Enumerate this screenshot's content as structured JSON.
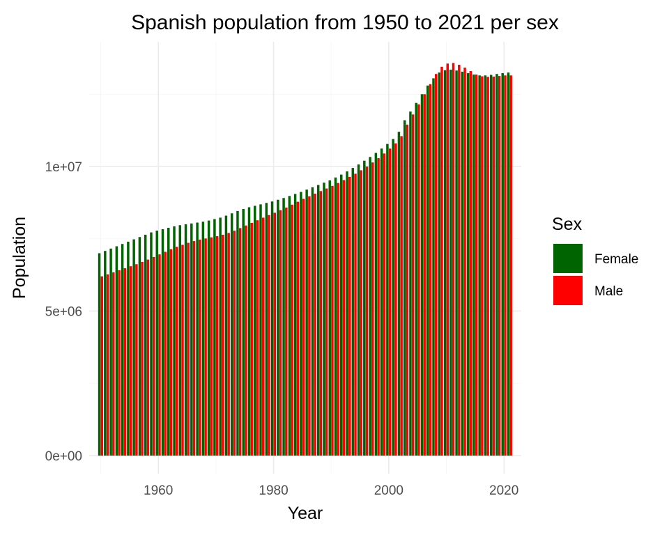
{
  "chart_data": {
    "type": "bar",
    "title": "Spanish population from 1950 to 2021 per sex",
    "xlabel": "Year",
    "ylabel": "Population",
    "xlim": [
      1948,
      2023
    ],
    "ylim": [
      0,
      14000000
    ],
    "x_ticks": [
      1960,
      1980,
      2000,
      2020
    ],
    "x_tick_labels": [
      "1960",
      "1980",
      "2000",
      "2020"
    ],
    "y_ticks": [
      0,
      5000000,
      10000000
    ],
    "y_tick_labels": [
      "0e+00",
      "5e+06",
      "1e+07"
    ],
    "grid": true,
    "legend": {
      "title": "Sex",
      "position": "right"
    },
    "x": [
      1950,
      1951,
      1952,
      1953,
      1954,
      1955,
      1956,
      1957,
      1958,
      1959,
      1960,
      1961,
      1962,
      1963,
      1964,
      1965,
      1966,
      1967,
      1968,
      1969,
      1970,
      1971,
      1972,
      1973,
      1974,
      1975,
      1976,
      1977,
      1978,
      1979,
      1980,
      1981,
      1982,
      1983,
      1984,
      1985,
      1986,
      1987,
      1988,
      1989,
      1990,
      1991,
      1992,
      1993,
      1994,
      1995,
      1996,
      1997,
      1998,
      1999,
      2000,
      2001,
      2002,
      2003,
      2004,
      2005,
      2006,
      2007,
      2008,
      2009,
      2010,
      2011,
      2012,
      2013,
      2014,
      2015,
      2016,
      2017,
      2018,
      2019,
      2020,
      2021
    ],
    "series": [
      {
        "name": "Female",
        "color": "#006400",
        "values": [
          7000000,
          7080000,
          7160000,
          7240000,
          7320000,
          7400000,
          7480000,
          7560000,
          7640000,
          7720000,
          7780000,
          7830000,
          7880000,
          7930000,
          7970000,
          8000000,
          8030000,
          8060000,
          8090000,
          8130000,
          8180000,
          8230000,
          8300000,
          8380000,
          8460000,
          8530000,
          8590000,
          8640000,
          8690000,
          8740000,
          8790000,
          8850000,
          8910000,
          8980000,
          9050000,
          9120000,
          9200000,
          9280000,
          9360000,
          9440000,
          9520000,
          9620000,
          9720000,
          9830000,
          9950000,
          10070000,
          10200000,
          10330000,
          10470000,
          10620000,
          10780000,
          10950000,
          11200000,
          11600000,
          11900000,
          12200000,
          12500000,
          12800000,
          13050000,
          13250000,
          13330000,
          13350000,
          13320000,
          13280000,
          13230000,
          13180000,
          13150000,
          13150000,
          13170000,
          13200000,
          13230000,
          13250000
        ]
      },
      {
        "name": "Male",
        "color": "#ff0000",
        "values": [
          6200000,
          6270000,
          6340000,
          6410000,
          6480000,
          6550000,
          6620000,
          6700000,
          6780000,
          6870000,
          6960000,
          7050000,
          7140000,
          7220000,
          7290000,
          7360000,
          7420000,
          7470000,
          7510000,
          7550000,
          7590000,
          7640000,
          7700000,
          7780000,
          7870000,
          7960000,
          8050000,
          8140000,
          8230000,
          8320000,
          8400000,
          8490000,
          8580000,
          8680000,
          8780000,
          8880000,
          8970000,
          9060000,
          9150000,
          9240000,
          9330000,
          9430000,
          9530000,
          9640000,
          9750000,
          9870000,
          10000000,
          10140000,
          10290000,
          10450000,
          10620000,
          10800000,
          11050000,
          11450000,
          11800000,
          12150000,
          12500000,
          12850000,
          13200000,
          13450000,
          13560000,
          13580000,
          13520000,
          13420000,
          13300000,
          13180000,
          13120000,
          13100000,
          13110000,
          13130000,
          13150000,
          13150000
        ]
      }
    ]
  }
}
